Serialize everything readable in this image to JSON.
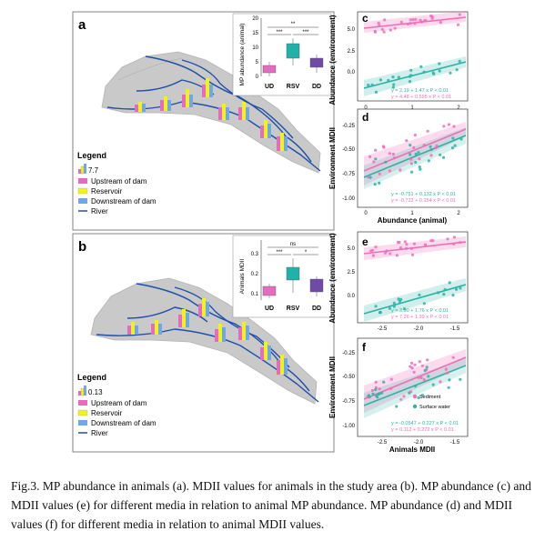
{
  "figure": {
    "panels": {
      "a": {
        "letter": "a",
        "legend": {
          "title": "Legend",
          "scale_value": "7.7",
          "items": [
            "Upstream of dam",
            "Reservoir",
            "Downstream of dam",
            "River"
          ]
        },
        "inset": {
          "ylabel": "MP abundance (animal)",
          "categories": [
            "UD",
            "RSV",
            "DD"
          ],
          "yticks": [
            "0",
            "5",
            "10",
            "15",
            "20"
          ],
          "sig": [
            "***",
            "***",
            "**"
          ]
        }
      },
      "b": {
        "letter": "b",
        "legend": {
          "title": "Legend",
          "scale_value": "0.13",
          "items": [
            "Upstream of dam",
            "Reservoir",
            "Downstream of dam",
            "River"
          ]
        },
        "inset": {
          "ylabel": "Animals MDII",
          "categories": [
            "UD",
            "RSV",
            "DD"
          ],
          "yticks": [
            "0.1",
            "0.2",
            "0.3"
          ],
          "sig": [
            "***",
            "*",
            "ns"
          ]
        }
      },
      "c": {
        "letter": "c",
        "ylabel": "Abundance (environment)",
        "xticks": [
          "0",
          "1",
          "2"
        ],
        "yticks": [
          "5.0",
          "2.5",
          "0.0"
        ],
        "eq1": "y = 2.19 + 1.47 x    P < 0.01",
        "eq2": "y = 4.48 + 0.595 x   P < 0.01"
      },
      "d": {
        "letter": "d",
        "ylabel": "Environment MDII",
        "xlabel": "Abundance (animal)",
        "xticks": [
          "0",
          "1",
          "2"
        ],
        "yticks": [
          "-0.25",
          "-0.50",
          "-0.75",
          "-1.00"
        ],
        "eq1": "y = -0.751 + 0.132 x   P < 0.01",
        "eq2": "y = -0.722 + 0.154 x   P < 0.01"
      },
      "e": {
        "letter": "e",
        "ylabel": "Abundance (environment)",
        "xticks": [
          "-2.5",
          "-2.0",
          "-1.5"
        ],
        "yticks": [
          "5.0",
          "2.5",
          "0.0"
        ],
        "eq1": "y = 3.90 + 1.76 x    P < 0.01",
        "eq2": "y = 7.26 + 1.39 x    P < 0.01"
      },
      "f": {
        "letter": "f",
        "ylabel": "Environment MDII",
        "xlabel": "Animals MDII",
        "xticks": [
          "-2.5",
          "-2.0",
          "-1.5"
        ],
        "yticks": [
          "-0.25",
          "-0.50",
          "-0.75",
          "-1.00"
        ],
        "legend": [
          "Sediment",
          "Surface water"
        ],
        "eq1": "y = -0.0547 + 0.227 x   P < 0.01",
        "eq2": "y = 0.112 + 0.272 x    P < 0.01"
      }
    },
    "colors": {
      "upstream": "#e46bc1",
      "reservoir": "#f2f21a",
      "downstream": "#6fa8e6",
      "river": "#1f4fa8",
      "sediment": "#ee6fb8",
      "surface_water": "#2bb3a5",
      "rsv_box": "#20b2aa",
      "dd_box": "#6f4aa6"
    },
    "caption": "Fig.3. MP abundance in animals (a). MDII values for animals in the study area (b). MP abundance (c) and MDII values (e) for different media in relation to animal MP abundance. MP abundance (d) and MDII values (f) for different media in relation to animal MDII values."
  }
}
